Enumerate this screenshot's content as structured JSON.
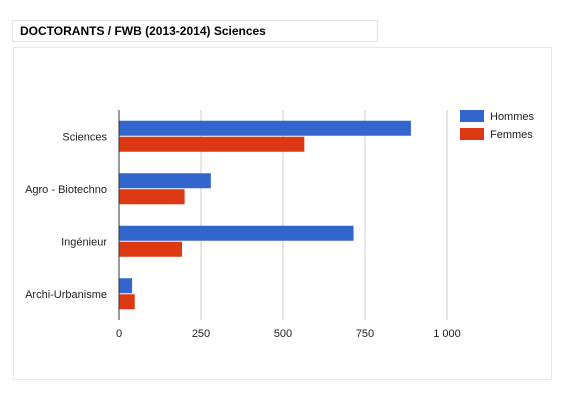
{
  "header": {
    "title": "DOCTORANTS / FWB (2013-2014) Sciences"
  },
  "chart_data": {
    "type": "bar",
    "orientation": "horizontal",
    "title": "",
    "xlabel": "",
    "ylabel": "",
    "categories": [
      "Sciences",
      "Agro - Biotechno",
      "Ingénieur",
      "Archi-Urbanisme"
    ],
    "series": [
      {
        "name": "Hommes",
        "color": "#3366cc",
        "values": [
          890,
          280,
          715,
          40
        ]
      },
      {
        "name": "Femmes",
        "color": "#dc3912",
        "values": [
          565,
          200,
          192,
          48
        ]
      }
    ],
    "xlim": [
      0,
      1000
    ],
    "xticks": [
      0,
      250,
      500,
      750,
      1000
    ],
    "xtick_labels": [
      "0",
      "250",
      "500",
      "750",
      "1 000"
    ],
    "grid": true,
    "legend_position": "right"
  }
}
